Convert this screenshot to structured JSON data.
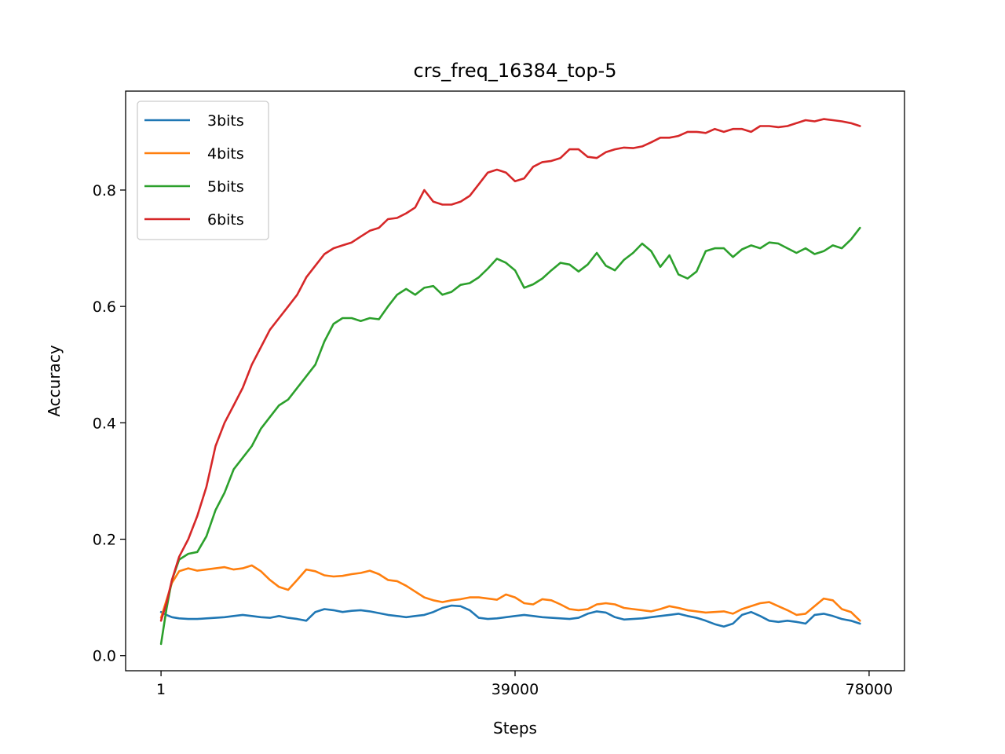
{
  "chart_data": {
    "type": "line",
    "title": "crs_freq_16384_top-5",
    "xlabel": "Steps",
    "ylabel": "Accuracy",
    "xlim": [
      -3900,
      81900
    ],
    "ylim": [
      -0.026,
      0.97
    ],
    "xticks": [
      1,
      39000,
      78000
    ],
    "xtick_labels": [
      "1",
      "39000",
      "78000"
    ],
    "yticks": [
      0.0,
      0.2,
      0.4,
      0.6,
      0.8
    ],
    "ytick_labels": [
      "0.0",
      "0.2",
      "0.4",
      "0.6",
      "0.8"
    ],
    "grid": false,
    "legend_position": "top-left",
    "series": [
      {
        "name": "3bits",
        "color": "#1f77b4",
        "x": [
          0,
          600,
          1200,
          2000,
          3000,
          4000,
          5000,
          6000,
          7000,
          8000,
          9000,
          10000,
          11000,
          12000,
          13000,
          14000,
          15000,
          16000,
          17000,
          18000,
          19000,
          20000,
          21000,
          22000,
          23000,
          24000,
          25000,
          26000,
          27000,
          28000,
          29000,
          30000,
          31000,
          32000,
          33000,
          34000,
          35000,
          36000,
          37000,
          38000,
          39000,
          40000,
          41000,
          42000,
          43000,
          44000,
          45000,
          46000,
          47000,
          48000,
          49000,
          50000,
          51000,
          52000,
          53000,
          54000,
          55000,
          56000,
          57000,
          58000,
          59000,
          60000,
          61000,
          62000,
          63000,
          64000,
          65000,
          66000,
          67000,
          68000,
          69000,
          70000,
          71000,
          72000,
          73000,
          74000,
          75000,
          76000,
          77000
        ],
        "values": [
          0.075,
          0.07,
          0.066,
          0.064,
          0.063,
          0.063,
          0.064,
          0.065,
          0.066,
          0.068,
          0.07,
          0.068,
          0.066,
          0.065,
          0.068,
          0.065,
          0.063,
          0.06,
          0.075,
          0.08,
          0.078,
          0.075,
          0.077,
          0.078,
          0.076,
          0.073,
          0.07,
          0.068,
          0.066,
          0.068,
          0.07,
          0.075,
          0.082,
          0.086,
          0.085,
          0.078,
          0.065,
          0.063,
          0.064,
          0.066,
          0.068,
          0.07,
          0.068,
          0.066,
          0.065,
          0.064,
          0.063,
          0.065,
          0.072,
          0.076,
          0.074,
          0.066,
          0.062,
          0.063,
          0.064,
          0.066,
          0.068,
          0.07,
          0.072,
          0.068,
          0.065,
          0.06,
          0.054,
          0.05,
          0.055,
          0.07,
          0.075,
          0.068,
          0.06,
          0.058,
          0.06,
          0.058,
          0.055,
          0.07,
          0.072,
          0.068,
          0.063,
          0.06,
          0.055
        ]
      },
      {
        "name": "4bits",
        "color": "#ff7f0e",
        "x": [
          0,
          600,
          1200,
          2000,
          3000,
          4000,
          5000,
          6000,
          7000,
          8000,
          9000,
          10000,
          11000,
          12000,
          13000,
          14000,
          15000,
          16000,
          17000,
          18000,
          19000,
          20000,
          21000,
          22000,
          23000,
          24000,
          25000,
          26000,
          27000,
          28000,
          29000,
          30000,
          31000,
          32000,
          33000,
          34000,
          35000,
          36000,
          37000,
          38000,
          39000,
          40000,
          41000,
          42000,
          43000,
          44000,
          45000,
          46000,
          47000,
          48000,
          49000,
          50000,
          51000,
          52000,
          53000,
          54000,
          55000,
          56000,
          57000,
          58000,
          59000,
          60000,
          61000,
          62000,
          63000,
          64000,
          65000,
          66000,
          67000,
          68000,
          69000,
          70000,
          71000,
          72000,
          73000,
          74000,
          75000,
          76000,
          77000
        ],
        "values": [
          0.065,
          0.095,
          0.125,
          0.145,
          0.15,
          0.146,
          0.148,
          0.15,
          0.152,
          0.148,
          0.15,
          0.155,
          0.145,
          0.13,
          0.118,
          0.113,
          0.13,
          0.148,
          0.145,
          0.138,
          0.136,
          0.137,
          0.14,
          0.142,
          0.146,
          0.14,
          0.13,
          0.128,
          0.12,
          0.11,
          0.1,
          0.095,
          0.092,
          0.095,
          0.097,
          0.1,
          0.1,
          0.098,
          0.096,
          0.105,
          0.1,
          0.09,
          0.088,
          0.097,
          0.095,
          0.088,
          0.08,
          0.078,
          0.08,
          0.088,
          0.09,
          0.088,
          0.082,
          0.08,
          0.078,
          0.076,
          0.08,
          0.085,
          0.082,
          0.078,
          0.076,
          0.074,
          0.075,
          0.076,
          0.072,
          0.08,
          0.085,
          0.09,
          0.092,
          0.085,
          0.078,
          0.07,
          0.072,
          0.085,
          0.098,
          0.095,
          0.08,
          0.075,
          0.06
        ]
      },
      {
        "name": "5bits",
        "color": "#2ca02c",
        "x": [
          0,
          600,
          1200,
          2000,
          3000,
          4000,
          5000,
          6000,
          7000,
          8000,
          9000,
          10000,
          11000,
          12000,
          13000,
          14000,
          15000,
          16000,
          17000,
          18000,
          19000,
          20000,
          21000,
          22000,
          23000,
          24000,
          25000,
          26000,
          27000,
          28000,
          29000,
          30000,
          31000,
          32000,
          33000,
          34000,
          35000,
          36000,
          37000,
          38000,
          39000,
          40000,
          41000,
          42000,
          43000,
          44000,
          45000,
          46000,
          47000,
          48000,
          49000,
          50000,
          51000,
          52000,
          53000,
          54000,
          55000,
          56000,
          57000,
          58000,
          59000,
          60000,
          61000,
          62000,
          63000,
          64000,
          65000,
          66000,
          67000,
          68000,
          69000,
          70000,
          71000,
          72000,
          73000,
          74000,
          75000,
          76000,
          77000
        ],
        "values": [
          0.02,
          0.08,
          0.13,
          0.165,
          0.175,
          0.178,
          0.205,
          0.25,
          0.28,
          0.32,
          0.34,
          0.36,
          0.39,
          0.41,
          0.43,
          0.44,
          0.46,
          0.48,
          0.5,
          0.54,
          0.57,
          0.58,
          0.58,
          0.575,
          0.58,
          0.578,
          0.6,
          0.62,
          0.63,
          0.62,
          0.632,
          0.635,
          0.62,
          0.625,
          0.637,
          0.64,
          0.65,
          0.665,
          0.682,
          0.675,
          0.662,
          0.632,
          0.638,
          0.648,
          0.662,
          0.675,
          0.672,
          0.66,
          0.672,
          0.692,
          0.67,
          0.662,
          0.68,
          0.692,
          0.708,
          0.695,
          0.668,
          0.688,
          0.655,
          0.648,
          0.66,
          0.695,
          0.7,
          0.7,
          0.685,
          0.698,
          0.705,
          0.7,
          0.71,
          0.708,
          0.7,
          0.692,
          0.7,
          0.69,
          0.695,
          0.705,
          0.7,
          0.715,
          0.735
        ]
      },
      {
        "name": "6bits",
        "color": "#d62728",
        "x": [
          0,
          600,
          1200,
          2000,
          3000,
          4000,
          5000,
          6000,
          7000,
          8000,
          9000,
          10000,
          11000,
          12000,
          13000,
          14000,
          15000,
          16000,
          17000,
          18000,
          19000,
          20000,
          21000,
          22000,
          23000,
          24000,
          25000,
          26000,
          27000,
          28000,
          29000,
          30000,
          31000,
          32000,
          33000,
          34000,
          35000,
          36000,
          37000,
          38000,
          39000,
          40000,
          41000,
          42000,
          43000,
          44000,
          45000,
          46000,
          47000,
          48000,
          49000,
          50000,
          51000,
          52000,
          53000,
          54000,
          55000,
          56000,
          57000,
          58000,
          59000,
          60000,
          61000,
          62000,
          63000,
          64000,
          65000,
          66000,
          67000,
          68000,
          69000,
          70000,
          71000,
          72000,
          73000,
          74000,
          75000,
          76000,
          77000
        ],
        "values": [
          0.06,
          0.09,
          0.13,
          0.17,
          0.2,
          0.24,
          0.29,
          0.36,
          0.4,
          0.43,
          0.46,
          0.5,
          0.53,
          0.56,
          0.58,
          0.6,
          0.62,
          0.65,
          0.67,
          0.69,
          0.7,
          0.705,
          0.71,
          0.72,
          0.73,
          0.735,
          0.75,
          0.752,
          0.76,
          0.77,
          0.8,
          0.78,
          0.775,
          0.775,
          0.78,
          0.79,
          0.81,
          0.83,
          0.835,
          0.83,
          0.815,
          0.82,
          0.84,
          0.848,
          0.85,
          0.855,
          0.87,
          0.87,
          0.857,
          0.855,
          0.865,
          0.87,
          0.873,
          0.872,
          0.875,
          0.882,
          0.89,
          0.89,
          0.893,
          0.9,
          0.9,
          0.898,
          0.905,
          0.9,
          0.905,
          0.905,
          0.9,
          0.91,
          0.91,
          0.908,
          0.91,
          0.915,
          0.92,
          0.918,
          0.922,
          0.92,
          0.918,
          0.915,
          0.91
        ]
      }
    ]
  }
}
